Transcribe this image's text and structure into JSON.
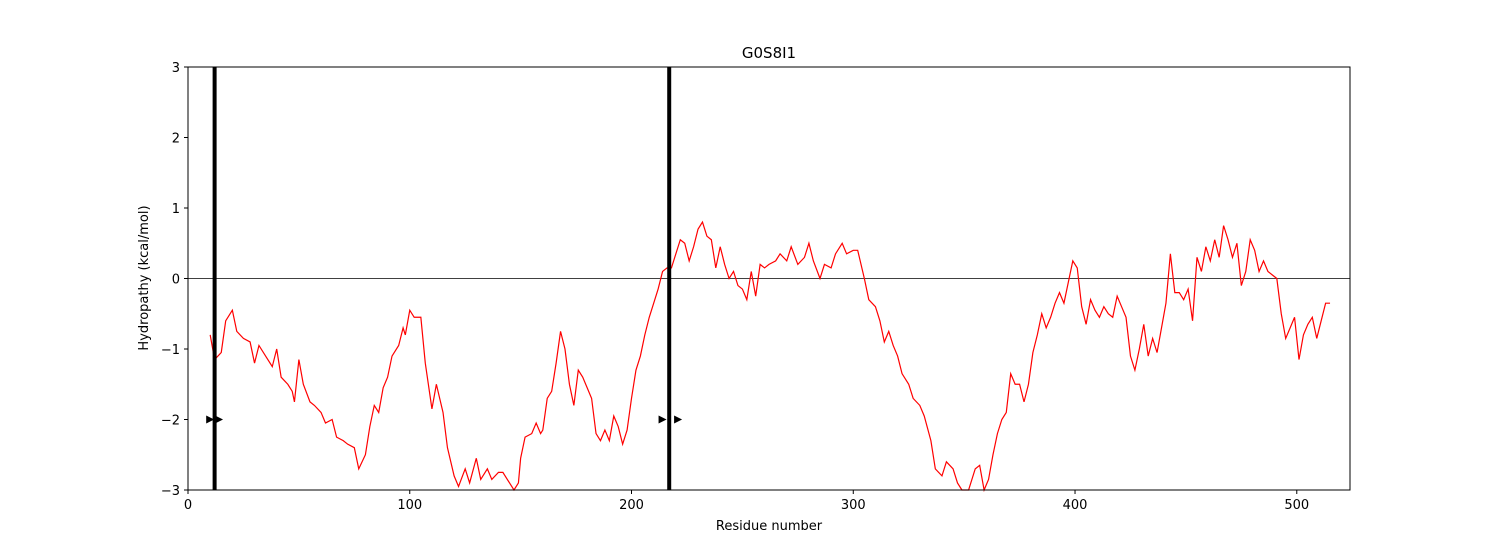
{
  "chart_data": {
    "type": "line",
    "title": "G0S8I1",
    "x_label": "Residue number",
    "y_label": "Hydropathy (kcal/mol)",
    "xlim": [
      0,
      524
    ],
    "ylim": [
      -3,
      3
    ],
    "xticks": [
      0,
      100,
      200,
      300,
      400,
      500
    ],
    "yticks": [
      {
        "value": -3,
        "label": "−3"
      },
      {
        "value": -2,
        "label": "−2"
      },
      {
        "value": -1,
        "label": "−1"
      },
      0,
      1,
      2,
      3
    ],
    "hline": 0,
    "hline_color": "#000000",
    "vlines": [
      12,
      217
    ],
    "vline_color": "#000000",
    "markers": {
      "x": [
        10,
        14,
        214,
        221
      ],
      "values": [
        -2,
        -2,
        -2,
        -2
      ],
      "color": "#000000"
    },
    "series": [
      {
        "color": "#ff0000",
        "x": [
          10,
          12,
          15,
          17,
          20,
          22,
          25,
          28,
          30,
          32,
          35,
          38,
          40,
          42,
          45,
          47,
          48,
          50,
          52,
          55,
          57,
          60,
          62,
          65,
          67,
          70,
          72,
          75,
          77,
          80,
          82,
          84,
          86,
          88,
          90,
          92,
          95,
          97,
          98,
          100,
          102,
          105,
          107,
          110,
          112,
          115,
          117,
          120,
          122,
          125,
          127,
          130,
          132,
          135,
          137,
          140,
          142,
          145,
          147,
          149,
          150,
          152,
          155,
          157,
          159,
          160,
          162,
          164,
          166,
          168,
          170,
          172,
          174,
          176,
          178,
          180,
          182,
          184,
          186,
          188,
          190,
          192,
          194,
          196,
          198,
          200,
          202,
          204,
          206,
          208,
          210,
          212,
          214,
          216,
          218,
          220,
          222,
          224,
          226,
          228,
          230,
          232,
          234,
          236,
          238,
          240,
          242,
          244,
          246,
          248,
          250,
          252,
          254,
          256,
          258,
          260,
          262,
          265,
          267,
          270,
          272,
          275,
          278,
          280,
          282,
          285,
          287,
          290,
          292,
          295,
          297,
          300,
          302,
          305,
          307,
          310,
          312,
          314,
          316,
          318,
          320,
          322,
          325,
          327,
          330,
          332,
          335,
          337,
          340,
          342,
          345,
          347,
          349,
          352,
          355,
          357,
          359,
          361,
          363,
          365,
          367,
          369,
          371,
          373,
          375,
          377,
          379,
          381,
          383,
          385,
          387,
          389,
          391,
          393,
          395,
          397,
          399,
          401,
          403,
          405,
          407,
          409,
          411,
          413,
          415,
          417,
          419,
          421,
          423,
          425,
          427,
          429,
          431,
          433,
          435,
          437,
          439,
          441,
          443,
          445,
          447,
          449,
          451,
          453,
          455,
          457,
          459,
          461,
          463,
          465,
          467,
          469,
          471,
          473,
          475,
          477,
          479,
          481,
          483,
          485,
          487,
          489,
          491,
          493,
          495,
          497,
          499,
          501,
          503,
          505,
          507,
          509,
          511,
          513,
          515
        ],
        "values": [
          -0.8,
          -1.15,
          -1.05,
          -0.6,
          -0.45,
          -0.75,
          -0.85,
          -0.9,
          -1.2,
          -0.95,
          -1.1,
          -1.25,
          -1.0,
          -1.4,
          -1.5,
          -1.6,
          -1.75,
          -1.15,
          -1.5,
          -1.75,
          -1.8,
          -1.9,
          -2.05,
          -2.0,
          -2.25,
          -2.3,
          -2.35,
          -2.4,
          -2.7,
          -2.5,
          -2.1,
          -1.8,
          -1.9,
          -1.55,
          -1.4,
          -1.1,
          -0.95,
          -0.7,
          -0.8,
          -0.45,
          -0.55,
          -0.55,
          -1.2,
          -1.85,
          -1.5,
          -1.9,
          -2.4,
          -2.8,
          -2.95,
          -2.7,
          -2.9,
          -2.55,
          -2.85,
          -2.7,
          -2.85,
          -2.75,
          -2.75,
          -2.9,
          -3.0,
          -2.9,
          -2.55,
          -2.25,
          -2.2,
          -2.05,
          -2.2,
          -2.15,
          -1.7,
          -1.6,
          -1.2,
          -0.75,
          -1.0,
          -1.5,
          -1.8,
          -1.3,
          -1.4,
          -1.55,
          -1.7,
          -2.2,
          -2.3,
          -2.15,
          -2.3,
          -1.95,
          -2.1,
          -2.35,
          -2.15,
          -1.7,
          -1.3,
          -1.1,
          -0.8,
          -0.55,
          -0.35,
          -0.15,
          0.1,
          0.15,
          0.15,
          0.35,
          0.55,
          0.5,
          0.25,
          0.45,
          0.7,
          0.8,
          0.6,
          0.55,
          0.15,
          0.45,
          0.2,
          0.0,
          0.1,
          -0.1,
          -0.15,
          -0.3,
          0.1,
          -0.25,
          0.2,
          0.15,
          0.2,
          0.25,
          0.35,
          0.25,
          0.45,
          0.2,
          0.3,
          0.5,
          0.25,
          0.0,
          0.2,
          0.15,
          0.35,
          0.5,
          0.35,
          0.4,
          0.4,
          0.0,
          -0.3,
          -0.4,
          -0.6,
          -0.9,
          -0.75,
          -0.95,
          -1.1,
          -1.35,
          -1.5,
          -1.7,
          -1.8,
          -1.95,
          -2.3,
          -2.7,
          -2.8,
          -2.6,
          -2.7,
          -2.9,
          -3.0,
          -3.0,
          -2.7,
          -2.65,
          -3.0,
          -2.85,
          -2.5,
          -2.2,
          -2.0,
          -1.9,
          -1.35,
          -1.5,
          -1.5,
          -1.75,
          -1.5,
          -1.05,
          -0.8,
          -0.5,
          -0.7,
          -0.55,
          -0.35,
          -0.2,
          -0.35,
          -0.05,
          0.25,
          0.15,
          -0.4,
          -0.65,
          -0.3,
          -0.45,
          -0.55,
          -0.4,
          -0.5,
          -0.55,
          -0.25,
          -0.4,
          -0.55,
          -1.1,
          -1.3,
          -1.0,
          -0.65,
          -1.1,
          -0.85,
          -1.05,
          -0.7,
          -0.35,
          0.35,
          -0.2,
          -0.2,
          -0.3,
          -0.15,
          -0.6,
          0.3,
          0.1,
          0.45,
          0.25,
          0.55,
          0.3,
          0.75,
          0.55,
          0.3,
          0.5,
          -0.1,
          0.1,
          0.55,
          0.4,
          0.1,
          0.25,
          0.1,
          0.05,
          0.0,
          -0.5,
          -0.85,
          -0.7,
          -0.55,
          -1.15,
          -0.8,
          -0.65,
          -0.55,
          -0.85,
          -0.6,
          -0.35,
          -0.35
        ]
      }
    ]
  }
}
